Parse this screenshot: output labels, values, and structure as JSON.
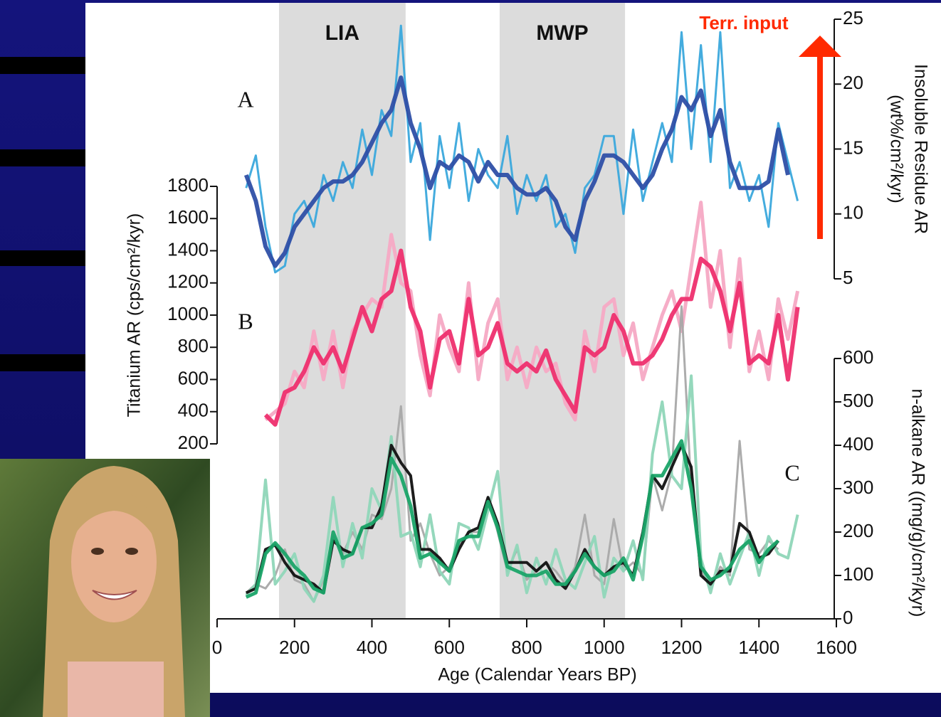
{
  "chart_data": [
    {
      "type": "line",
      "label": "A",
      "xlim": [
        0,
        1600
      ],
      "x": [
        75,
        100,
        125,
        150,
        175,
        200,
        225,
        250,
        275,
        300,
        325,
        350,
        375,
        400,
        425,
        450,
        475,
        500,
        525,
        550,
        575,
        600,
        625,
        650,
        675,
        700,
        725,
        750,
        775,
        800,
        825,
        850,
        875,
        900,
        925,
        950,
        975,
        1000,
        1025,
        1050,
        1075,
        1100,
        1125,
        1150,
        1175,
        1200,
        1225,
        1250,
        1275,
        1300,
        1325,
        1350,
        1375,
        1400,
        1425,
        1450,
        1475,
        1500
      ],
      "ylabel": [
        "Insoluble Residue AR",
        "(wt%/cm²/kyr)"
      ],
      "ylim": [
        5,
        25
      ],
      "yticks": [
        5,
        10,
        15,
        20,
        25
      ],
      "shaded_regions": [
        {
          "label": "LIA",
          "range": [
            160,
            487
          ]
        },
        {
          "label": "MWP",
          "range": [
            730,
            1054
          ]
        }
      ],
      "annotation": "Terr. input",
      "series": [
        {
          "color": "#3aa8dc",
          "values": [
            12,
            14.5,
            9,
            5.5,
            6,
            10,
            11,
            9,
            13,
            11,
            14,
            12,
            16.5,
            13,
            18,
            16,
            24.5,
            14,
            17,
            8,
            16,
            12,
            17,
            11,
            15,
            13,
            12,
            16,
            10,
            13,
            11,
            13,
            9,
            10,
            7,
            12,
            13,
            16,
            16,
            10,
            16.5,
            11,
            14,
            17,
            14,
            24,
            15,
            23,
            14,
            24,
            12,
            14,
            11,
            13,
            9,
            17,
            14,
            11
          ]
        },
        {
          "color": "#2e4fa6",
          "values": [
            13,
            11,
            7.5,
            6,
            7,
            9,
            10,
            11,
            12,
            12.5,
            12.5,
            13,
            14,
            15.5,
            17,
            18,
            20.5,
            17,
            15,
            12,
            14,
            13.5,
            14.5,
            14,
            12.5,
            14,
            13,
            13,
            12,
            11.5,
            11.5,
            12,
            11,
            9,
            8,
            11,
            12.5,
            14.5,
            14.5,
            14,
            13,
            12,
            13,
            15,
            16.5,
            19,
            18,
            19.5,
            16,
            18,
            14,
            12,
            12,
            12,
            12.5,
            16.5,
            13,
            null
          ]
        }
      ]
    },
    {
      "type": "line",
      "label": "B",
      "xlim": [
        0,
        1600
      ],
      "x": [
        75,
        100,
        125,
        150,
        175,
        200,
        225,
        250,
        275,
        300,
        325,
        350,
        375,
        400,
        425,
        450,
        475,
        500,
        525,
        550,
        575,
        600,
        625,
        650,
        675,
        700,
        725,
        750,
        775,
        800,
        825,
        850,
        875,
        900,
        925,
        950,
        975,
        1000,
        1025,
        1050,
        1075,
        1100,
        1125,
        1150,
        1175,
        1200,
        1225,
        1250,
        1275,
        1300,
        1325,
        1350,
        1375,
        1400,
        1425,
        1450,
        1475,
        1500
      ],
      "ylabel": "Titanium AR (cps/cm²/kyr)",
      "ylim": [
        200,
        1800
      ],
      "yticks": [
        200,
        400,
        600,
        800,
        1000,
        1200,
        1400,
        1600,
        1800
      ],
      "series": [
        {
          "color": "#f5a9c4",
          "values": [
            null,
            null,
            350,
            400,
            450,
            650,
            550,
            900,
            600,
            900,
            550,
            900,
            1000,
            1100,
            1050,
            1500,
            1200,
            1150,
            750,
            500,
            1000,
            800,
            650,
            1200,
            600,
            950,
            1100,
            600,
            800,
            550,
            800,
            650,
            700,
            450,
            350,
            900,
            650,
            1050,
            1100,
            750,
            950,
            600,
            800,
            1000,
            1150,
            900,
            1300,
            1700,
            1050,
            1400,
            800,
            1350,
            650,
            900,
            600,
            1100,
            850,
            1150
          ]
        },
        {
          "color": "#ee2f6e",
          "values": [
            null,
            null,
            380,
            320,
            520,
            550,
            650,
            800,
            700,
            800,
            650,
            850,
            1050,
            900,
            1100,
            1150,
            1400,
            1050,
            900,
            550,
            850,
            900,
            700,
            1100,
            750,
            800,
            950,
            700,
            650,
            700,
            650,
            780,
            600,
            500,
            400,
            800,
            750,
            800,
            1000,
            900,
            700,
            700,
            750,
            850,
            1000,
            1100,
            1100,
            1350,
            1300,
            1150,
            900,
            1200,
            700,
            750,
            700,
            1000,
            600,
            1050
          ]
        }
      ]
    },
    {
      "type": "line",
      "label": "C",
      "xlim": [
        0,
        1600
      ],
      "x": [
        75,
        100,
        125,
        150,
        175,
        200,
        225,
        250,
        275,
        300,
        325,
        350,
        375,
        400,
        425,
        450,
        475,
        500,
        525,
        550,
        575,
        600,
        625,
        650,
        675,
        700,
        725,
        750,
        775,
        800,
        825,
        850,
        875,
        900,
        925,
        950,
        975,
        1000,
        1025,
        1050,
        1075,
        1100,
        1125,
        1150,
        1175,
        1200,
        1225,
        1250,
        1275,
        1300,
        1325,
        1350,
        1375,
        1400,
        1425,
        1450,
        1475,
        1500
      ],
      "ylabel": "n-alkane AR ((mg/g)/cm²/kyr)",
      "ylim": [
        0,
        600
      ],
      "yticks": [
        0,
        100,
        200,
        300,
        400,
        500,
        600
      ],
      "xlabel": "Age (Calendar Years BP)",
      "xticks": [
        0,
        200,
        400,
        600,
        800,
        1000,
        1200,
        1400,
        1600
      ],
      "series": [
        {
          "color": "#a8a8a8",
          "values": [
            60,
            80,
            70,
            100,
            160,
            90,
            80,
            40,
            90,
            190,
            150,
            200,
            160,
            240,
            230,
            300,
            490,
            180,
            220,
            150,
            100,
            120,
            170,
            200,
            200,
            280,
            200,
            110,
            160,
            90,
            110,
            130,
            110,
            80,
            120,
            240,
            100,
            80,
            230,
            110,
            130,
            100,
            330,
            250,
            340,
            720,
            300,
            110,
            70,
            120,
            100,
            410,
            160,
            150,
            180,
            160,
            null,
            null
          ]
        },
        {
          "color": "#8fd6b8",
          "values": [
            55,
            80,
            320,
            80,
            110,
            150,
            70,
            40,
            100,
            280,
            120,
            220,
            140,
            300,
            250,
            420,
            190,
            200,
            120,
            240,
            110,
            80,
            220,
            210,
            160,
            250,
            340,
            100,
            170,
            60,
            140,
            80,
            160,
            90,
            70,
            130,
            190,
            50,
            140,
            110,
            180,
            90,
            380,
            500,
            330,
            300,
            560,
            140,
            60,
            150,
            80,
            140,
            200,
            100,
            190,
            150,
            140,
            240
          ]
        },
        {
          "color": "#111111",
          "values": [
            60,
            70,
            160,
            170,
            130,
            100,
            90,
            80,
            60,
            180,
            160,
            150,
            210,
            210,
            260,
            400,
            360,
            330,
            160,
            160,
            140,
            110,
            160,
            200,
            210,
            280,
            220,
            130,
            130,
            130,
            110,
            130,
            90,
            70,
            110,
            160,
            120,
            100,
            120,
            130,
            100,
            200,
            330,
            300,
            350,
            400,
            350,
            100,
            80,
            110,
            110,
            220,
            200,
            140,
            150,
            180,
            null,
            null
          ]
        },
        {
          "color": "#1aa468",
          "values": [
            50,
            60,
            150,
            175,
            150,
            120,
            100,
            70,
            60,
            200,
            140,
            150,
            210,
            220,
            240,
            370,
            330,
            260,
            140,
            150,
            130,
            110,
            180,
            190,
            190,
            270,
            210,
            120,
            110,
            100,
            100,
            110,
            80,
            80,
            110,
            150,
            120,
            100,
            110,
            140,
            90,
            190,
            330,
            330,
            370,
            410,
            300,
            120,
            90,
            100,
            120,
            160,
            180,
            130,
            160,
            180,
            null,
            null
          ]
        }
      ]
    }
  ]
}
